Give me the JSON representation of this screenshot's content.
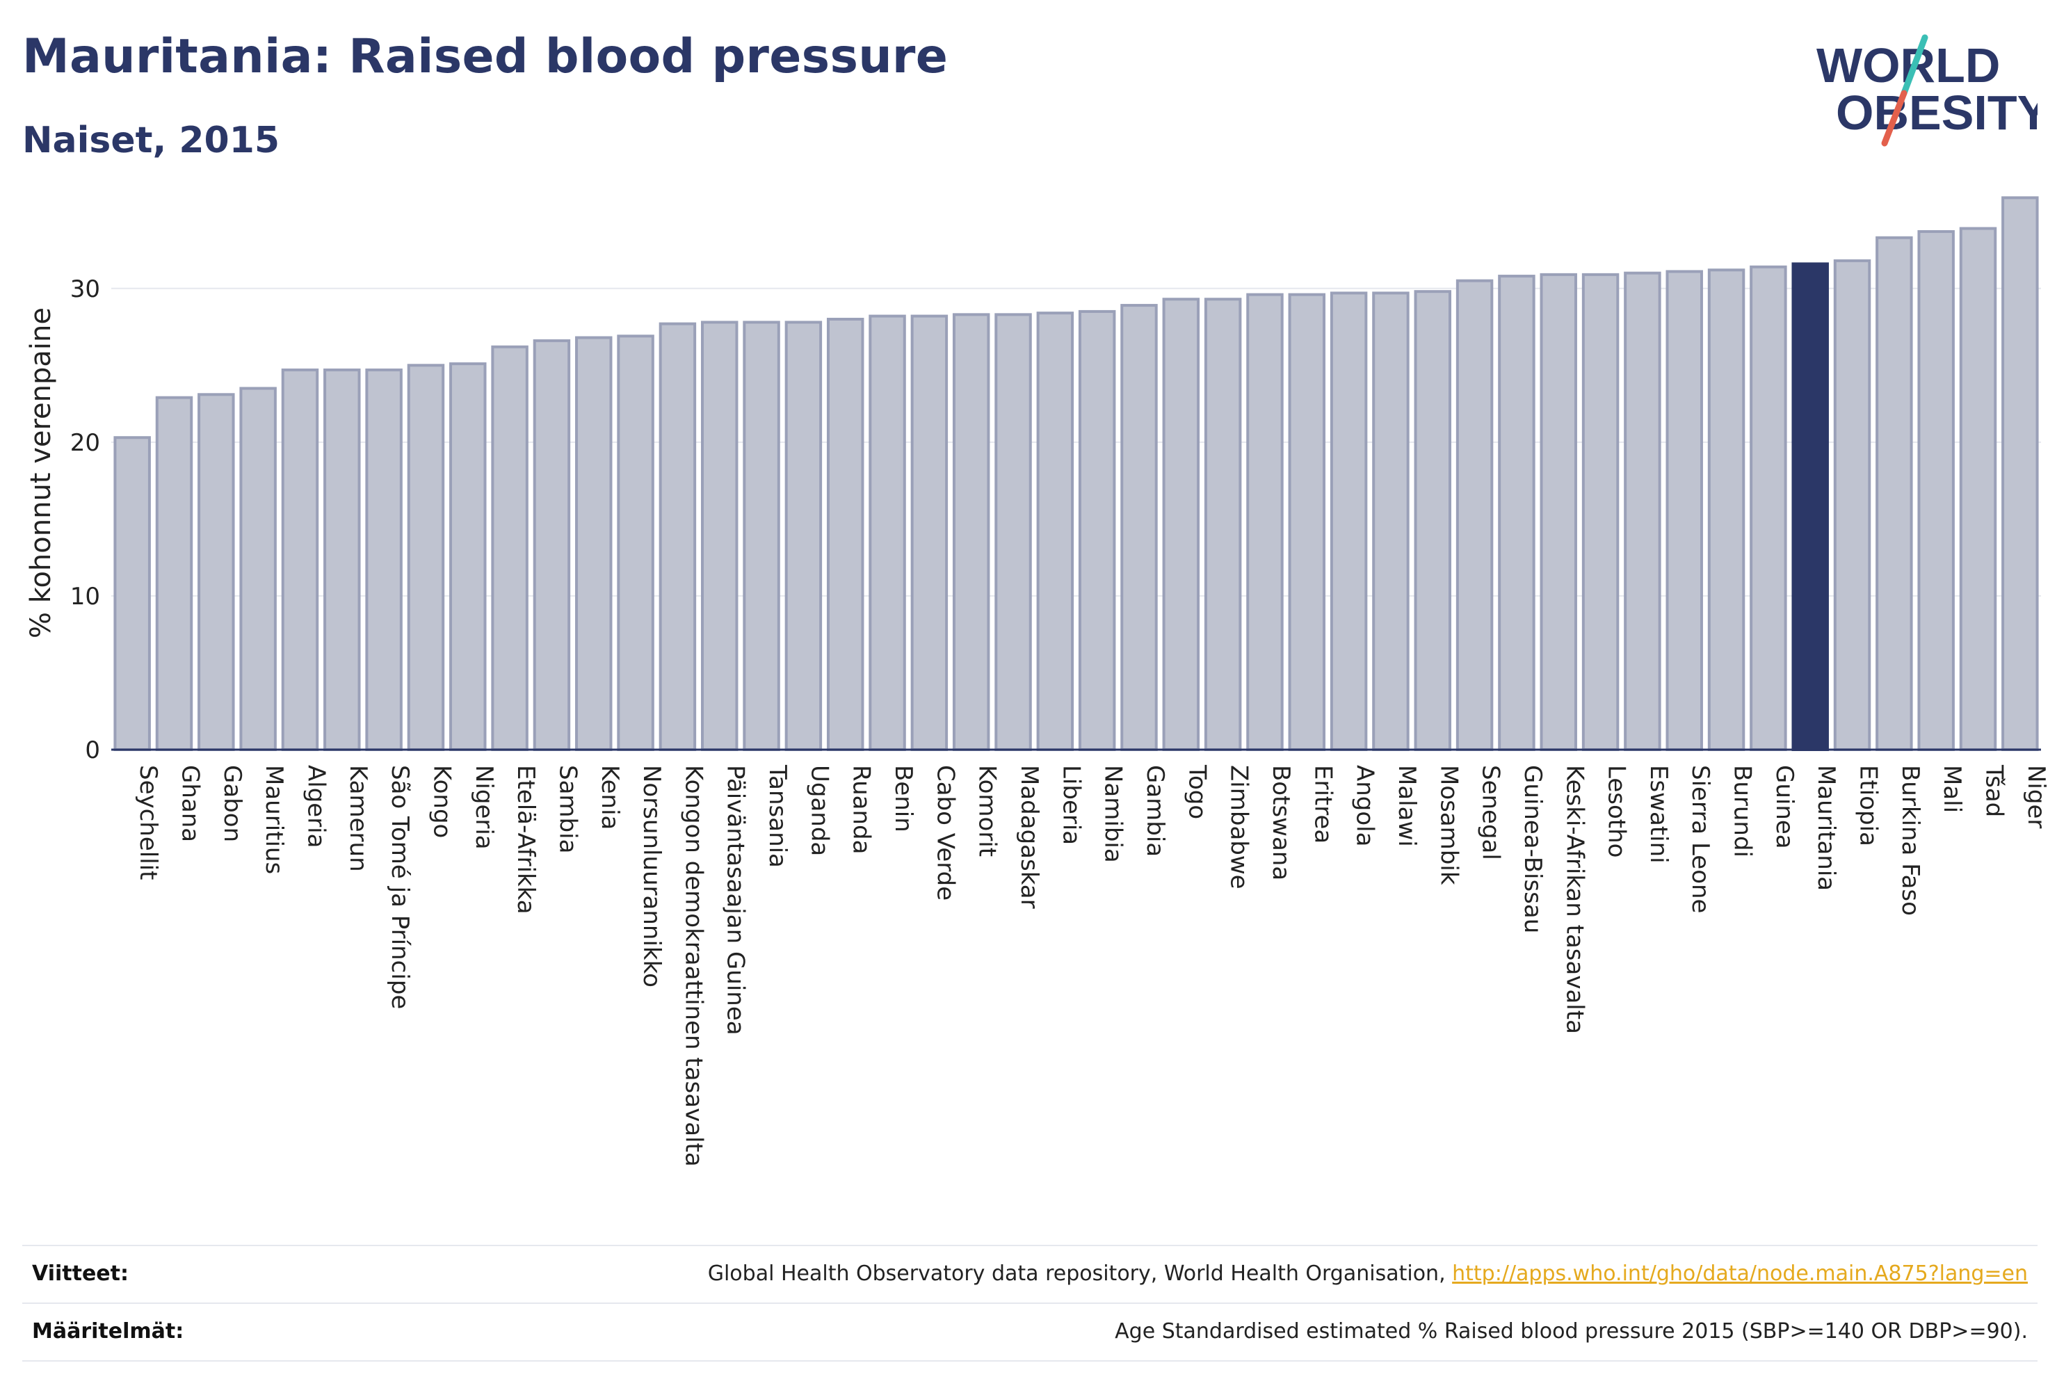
{
  "header": {
    "title": "Mauritania: Raised blood pressure",
    "subtitle": "Naiset, 2015"
  },
  "logo": {
    "line1": "WORLD",
    "line2": "OBESITY",
    "accent_colors": [
      "#3bbfb5",
      "#e3604c"
    ]
  },
  "colors": {
    "bar": "#bfc3d0",
    "bar_outline": "#9aa0b8",
    "highlight": "#2b3767",
    "grid": "#e6e8ee",
    "axis": "#2b3767"
  },
  "chart_data": {
    "type": "bar",
    "title": "Mauritania: Raised blood pressure",
    "subtitle": "Naiset, 2015",
    "xlabel": "",
    "ylabel": "% kohonnut verenpaine",
    "ylim": [
      0,
      37
    ],
    "yticks": [
      0,
      10,
      20,
      30
    ],
    "grid": true,
    "highlight": "Mauritania",
    "categories": [
      "Seychellit",
      "Ghana",
      "Gabon",
      "Mauritius",
      "Algeria",
      "Kamerun",
      "São Tomé ja Príncipe",
      "Kongo",
      "Nigeria",
      "Etelä-Afrikka",
      "Sambia",
      "Kenia",
      "Norsunluurannikko",
      "Kongon demokraattinen tasavalta",
      "Päiväntasaajan Guinea",
      "Tansania",
      "Uganda",
      "Ruanda",
      "Benin",
      "Cabo Verde",
      "Komorit",
      "Madagaskar",
      "Liberia",
      "Namibia",
      "Gambia",
      "Togo",
      "Zimbabwe",
      "Botswana",
      "Eritrea",
      "Angola",
      "Malawi",
      "Mosambik",
      "Senegal",
      "Guinea-Bissau",
      "Keski-Afrikan tasavalta",
      "Lesotho",
      "Eswatini",
      "Sierra Leone",
      "Burundi",
      "Guinea",
      "Mauritania",
      "Etiopia",
      "Burkina Faso",
      "Mali",
      "Tšad",
      "Niger"
    ],
    "values": [
      20.3,
      22.9,
      23.1,
      23.5,
      24.7,
      24.7,
      24.7,
      25.0,
      25.1,
      26.2,
      26.6,
      26.8,
      26.9,
      27.7,
      27.8,
      27.8,
      27.8,
      28.0,
      28.2,
      28.2,
      28.3,
      28.3,
      28.4,
      28.5,
      28.9,
      29.3,
      29.3,
      29.6,
      29.6,
      29.7,
      29.7,
      29.8,
      30.5,
      30.8,
      30.9,
      30.9,
      31.0,
      31.1,
      31.2,
      31.4,
      31.6,
      31.8,
      33.3,
      33.7,
      33.9,
      35.9
    ]
  },
  "footer": {
    "sources_label": "Viitteet:",
    "sources_text": "Global Health Observatory data repository, World Health Organisation, ",
    "sources_link": "http://apps.who.int/gho/data/node.main.A875?lang=en",
    "definitions_label": "Määritelmät:",
    "definitions_text": "Age Standardised estimated % Raised blood pressure 2015 (SBP>=140 OR DBP>=90)."
  }
}
